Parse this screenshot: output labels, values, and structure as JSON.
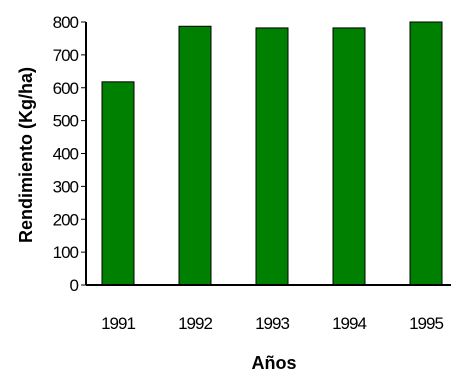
{
  "chart_data": {
    "type": "bar",
    "categories": [
      "1991",
      "1992",
      "1993",
      "1994",
      "1995"
    ],
    "values": [
      618,
      787,
      782,
      782,
      800
    ],
    "xlabel": "Años",
    "ylabel": "Rendimiento (Kg/ha)",
    "ylim": [
      0,
      800
    ],
    "yticks": [
      0,
      100,
      200,
      300,
      400,
      500,
      600,
      700,
      800
    ],
    "bar_color": "#008000",
    "grid": false,
    "legend": "none"
  }
}
